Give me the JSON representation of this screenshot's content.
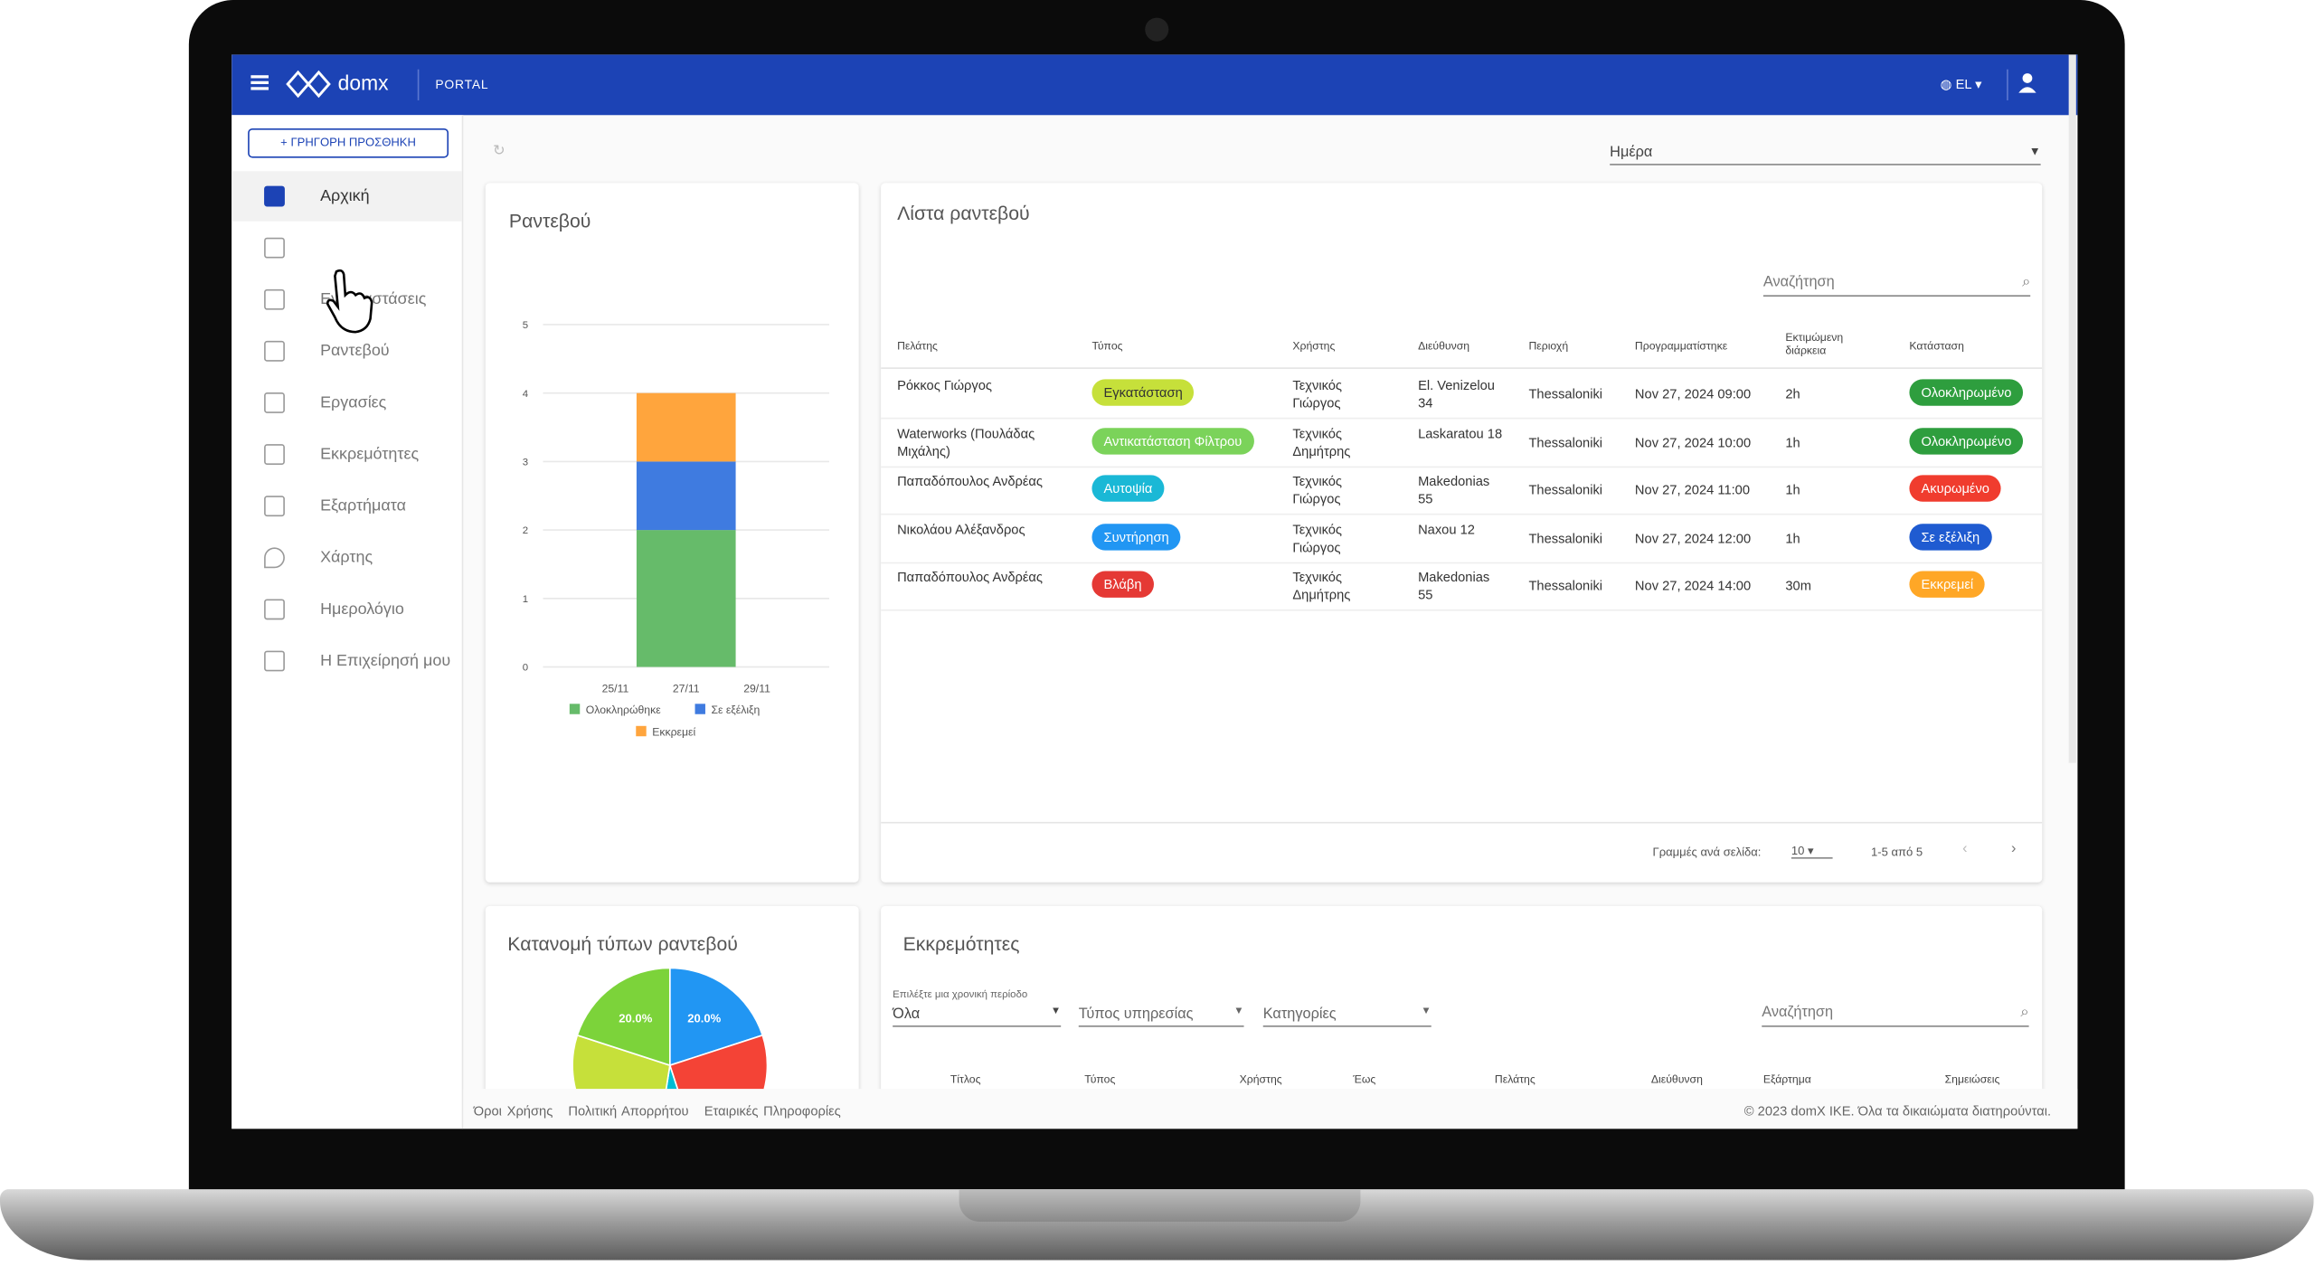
{
  "header": {
    "brand": "domx",
    "portal": "PORTAL",
    "language": "EL"
  },
  "sidebar": {
    "quick_add": "ΓΡΗΓΟΡΗ ΠΡΟΣΘΗΚΗ",
    "home": "Αρχική",
    "installations": "Εγκαταστάσεις",
    "appointments": "Ραντεβού",
    "tasks": "Εργασίες",
    "pending": "Εκκρεμότητες",
    "parts": "Εξαρτήματα",
    "map": "Χάρτης",
    "calendar": "Ημερολόγιο",
    "business": "Η Επιχείρησή μου"
  },
  "period_select": "Ημέρα",
  "chart_data": [
    {
      "type": "bar",
      "stacked": true,
      "title": "Ραντεβού",
      "categories": [
        "25/11",
        "27/11",
        "29/11"
      ],
      "series": [
        {
          "name": "Ολοκληρώθηκε",
          "color": "#66bb6a",
          "values": [
            0,
            2,
            0
          ]
        },
        {
          "name": "Σε εξέλιξη",
          "color": "#3f7be0",
          "values": [
            0,
            1,
            0
          ]
        },
        {
          "name": "Εκκρεμεί",
          "color": "#ffa53d",
          "values": [
            0,
            1,
            0
          ]
        }
      ],
      "ylim": [
        0,
        5
      ],
      "yticks": [
        0,
        1,
        2,
        3,
        4,
        5
      ],
      "grid": true
    },
    {
      "type": "pie",
      "title": "Κατανομή τύπων ραντεβού",
      "values": [
        20,
        25,
        7.5,
        27.5,
        20
      ],
      "value_labels": [
        "20.0%",
        null,
        null,
        null,
        "20.0%"
      ],
      "colors": [
        "#2196f3",
        "#f44336",
        "#00bcd4",
        "#c6e03a",
        "#7cd33a"
      ]
    }
  ],
  "appointments": {
    "title": "Λίστα ραντεβού",
    "search": "Αναζήτηση",
    "columns": [
      "Πελάτης",
      "Τύπος",
      "Χρήστης",
      "Διεύθυνση",
      "Περιοχή",
      "Προγραμματίστηκε",
      "Εκτιμώμενη διάρκεια",
      "Κατάσταση"
    ],
    "rows": [
      {
        "client": "Ρόκκος Γιώργος",
        "type": "Εγκατάσταση",
        "type_color": "#c6e03a",
        "user": "Τεχνικός Γιώργος",
        "address": "El. Venizelou 34",
        "area": "Thessaloniki",
        "scheduled": "Nov 27, 2024 09:00",
        "duration": "2h",
        "status": "Ολοκληρωμένο",
        "status_color": "#2e9e3e"
      },
      {
        "client": "Waterworks (Πουλάδας Μιχάλης)",
        "type": "Αντικατάσταση Φίλτρου",
        "type_color": "#7bd35a",
        "user": "Τεχνικός Δημήτρης",
        "address": "Laskaratou 18",
        "area": "Thessaloniki",
        "scheduled": "Nov 27, 2024 10:00",
        "duration": "1h",
        "status": "Ολοκληρωμένο",
        "status_color": "#2e9e3e"
      },
      {
        "client": "Παπαδόπουλος Ανδρέας",
        "type": "Αυτοψία",
        "type_color": "#1ab8d6",
        "user": "Τεχνικός Γιώργος",
        "address": "Makedonias 55",
        "area": "Thessaloniki",
        "scheduled": "Nov 27, 2024 11:00",
        "duration": "1h",
        "status": "Ακυρωμένο",
        "status_color": "#f03c2e"
      },
      {
        "client": "Νικολάου Αλέξανδρος",
        "type": "Συντήρηση",
        "type_color": "#2196f3",
        "user": "Τεχνικός Γιώργος",
        "address": "Naxou 12",
        "area": "Thessaloniki",
        "scheduled": "Nov 27, 2024 12:00",
        "duration": "1h",
        "status": "Σε εξέλιξη",
        "status_color": "#1f5bd1"
      },
      {
        "client": "Παπαδόπουλος Ανδρέας",
        "type": "Βλάβη",
        "type_color": "#e53935",
        "user": "Τεχνικός Δημήτρης",
        "address": "Makedonias 55",
        "area": "Thessaloniki",
        "scheduled": "Nov 27, 2024 14:00",
        "duration": "30m",
        "status": "Εκκρεμεί",
        "status_color": "#ffa726"
      }
    ],
    "rows_per_page_label": "Γραμμές ανά σελίδα:",
    "rows_per_page": "10",
    "range": "1-5 από 5"
  },
  "pending": {
    "title": "Εκκρεμότητες",
    "period_label": "Επιλέξτε μια χρονική περίοδο",
    "period": "Όλα",
    "service_type": "Τύπος υπηρεσίας",
    "categories": "Κατηγορίες",
    "search": "Αναζήτηση",
    "columns": [
      "Τίτλος",
      "Τύπος",
      "Χρήστης",
      "Έως",
      "Πελάτης",
      "Διεύθυνση",
      "Εξάρτημα",
      "Σημειώσεις"
    ]
  },
  "footer": {
    "links": [
      "Όροι Χρήσης",
      "Πολιτική Απορρήτου",
      "Εταιρικές Πληροφορίες"
    ],
    "copyright": "© 2023 domX IKE. Όλα τα δικαιώματα διατηρούνται."
  }
}
